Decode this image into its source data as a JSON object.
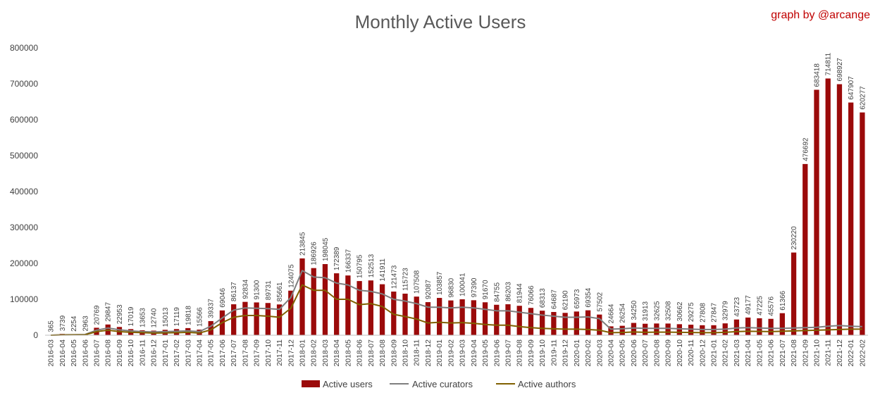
{
  "chart_data": {
    "type": "bar",
    "title": "Monthly Active Users",
    "credit": "graph by @arcange",
    "xlabel": "",
    "ylabel": "",
    "ylim": [
      0,
      800000
    ],
    "yticks": [
      0,
      100000,
      200000,
      300000,
      400000,
      500000,
      600000,
      700000,
      800000
    ],
    "grid": false,
    "legend_position": "bottom",
    "colors": {
      "users": "#9b0a0a",
      "curators": "#7f7f7f",
      "authors": "#806000"
    },
    "categories": [
      "2016-03",
      "2016-04",
      "2016-05",
      "2016-06",
      "2016-07",
      "2016-08",
      "2016-09",
      "2016-10",
      "2016-11",
      "2016-12",
      "2017-01",
      "2017-02",
      "2017-03",
      "2017-04",
      "2017-05",
      "2017-06",
      "2017-07",
      "2017-08",
      "2017-09",
      "2017-10",
      "2017-11",
      "2017-12",
      "2018-01",
      "2018-02",
      "2018-03",
      "2018-04",
      "2018-05",
      "2018-06",
      "2018-07",
      "2018-08",
      "2018-09",
      "2018-10",
      "2018-11",
      "2018-12",
      "2019-01",
      "2019-02",
      "2019-03",
      "2019-04",
      "2019-05",
      "2019-06",
      "2019-07",
      "2019-08",
      "2019-09",
      "2019-10",
      "2019-11",
      "2019-12",
      "2020-01",
      "2020-02",
      "2020-03",
      "2020-04",
      "2020-05",
      "2020-06",
      "2020-07",
      "2020-08",
      "2020-09",
      "2020-10",
      "2020-11",
      "2020-12",
      "2021-01",
      "2021-02",
      "2021-03",
      "2021-04",
      "2021-05",
      "2021-06",
      "2021-07",
      "2021-08",
      "2021-09",
      "2021-10",
      "2021-11",
      "2021-12",
      "2022-01",
      "2022-02"
    ],
    "series": [
      {
        "name": "Active users",
        "kind": "bar",
        "values": [
          365,
          3739,
          2254,
          2963,
          20769,
          29847,
          22953,
          17019,
          13653,
          12740,
          15013,
          17119,
          19818,
          15566,
          39337,
          69046,
          86137,
          92834,
          91300,
          89731,
          85661,
          124075,
          213845,
          186926,
          198045,
          172389,
          166337,
          150795,
          152513,
          141911,
          121473,
          115723,
          107508,
          92087,
          103857,
          96830,
          100041,
          97390,
          91670,
          84755,
          86203,
          81944,
          76066,
          68313,
          64687,
          62190,
          65973,
          69354,
          57502,
          24664,
          26254,
          34250,
          31913,
          32625,
          32508,
          30662,
          29275,
          27808,
          27847,
          32979,
          43723,
          49177,
          47225,
          45576,
          61366,
          230220,
          476692,
          683418,
          714811,
          698927,
          647907,
          620277
        ]
      },
      {
        "name": "Active curators",
        "kind": "line",
        "values": [
          100,
          1200,
          1500,
          2000,
          14000,
          20000,
          15000,
          12000,
          10000,
          9000,
          10000,
          11000,
          12000,
          10000,
          25000,
          48000,
          70000,
          76000,
          75000,
          74000,
          72000,
          105000,
          180000,
          162000,
          160000,
          145000,
          140000,
          125000,
          122000,
          115000,
          100000,
          95000,
          88000,
          78000,
          78000,
          76000,
          78000,
          76000,
          72000,
          68000,
          68000,
          64000,
          60000,
          56000,
          53000,
          50000,
          50000,
          51000,
          46000,
          17000,
          18000,
          20000,
          19000,
          19000,
          19000,
          18000,
          17000,
          16000,
          16000,
          17000,
          20000,
          21000,
          20000,
          19000,
          19000,
          20000,
          21000,
          22000,
          25000,
          27000,
          25000,
          24000
        ]
      },
      {
        "name": "Active authors",
        "kind": "line",
        "values": [
          50,
          800,
          1000,
          1200,
          10000,
          14000,
          10000,
          8000,
          7000,
          6000,
          6500,
          7000,
          8000,
          6000,
          15000,
          35000,
          50000,
          55000,
          55000,
          53000,
          50000,
          75000,
          140000,
          125000,
          125000,
          100000,
          100000,
          85000,
          88000,
          80000,
          58000,
          52000,
          45000,
          34000,
          36000,
          34000,
          35000,
          33000,
          30000,
          28000,
          28000,
          24000,
          21000,
          19000,
          18000,
          17000,
          17000,
          16000,
          14000,
          7000,
          7500,
          9000,
          8000,
          8500,
          8500,
          8000,
          7500,
          7000,
          7000,
          8000,
          10000,
          11000,
          10500,
          10000,
          11000,
          12000,
          13000,
          14000,
          15000,
          16000,
          17000,
          17000
        ]
      }
    ]
  }
}
